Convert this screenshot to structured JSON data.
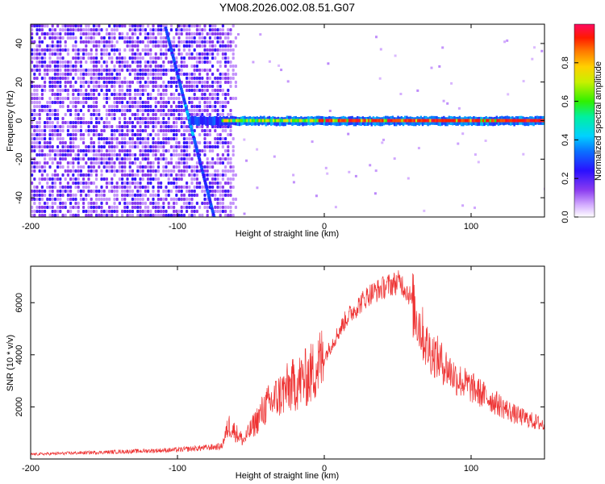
{
  "chart_data": [
    {
      "type": "heatmap",
      "title": "YM08.2026.002.08.51.G07",
      "xlabel": "Height of straight line (km)",
      "ylabel": "Frequency (Hz)",
      "xlim": [
        -200,
        150
      ],
      "ylim": [
        -50,
        50
      ],
      "xticks": [
        -200,
        -100,
        0,
        100
      ],
      "xtick_labels": [
        "-200",
        "-100",
        "0",
        "100"
      ],
      "yticks": [
        -40,
        -20,
        0,
        20,
        40
      ],
      "ytick_labels": [
        "-40",
        "-20",
        "0",
        "20",
        "40"
      ],
      "colorbar": {
        "label": "Normalized spectral amplitude",
        "range": [
          0,
          1
        ],
        "ticks": [
          0.0,
          0.2,
          0.4,
          0.6,
          0.8
        ],
        "tick_labels": [
          "0.0",
          "0.2",
          "0.4",
          "0.6",
          "0.8"
        ]
      },
      "features": {
        "noise_region_x": [
          -200,
          -62
        ],
        "steady_line": {
          "freq": 0,
          "x_start": -92,
          "x_end": 150
        },
        "diagonal_trace": {
          "x_top": -108,
          "freq_top": 48,
          "x_bottom": -75,
          "freq_bottom": -50
        }
      }
    },
    {
      "type": "line",
      "xlabel": "Height of straight line (km)",
      "ylabel": "SNR (10 * v/v)",
      "xlim": [
        -200,
        150
      ],
      "ylim": [
        0,
        7400
      ],
      "xticks": [
        -200,
        -100,
        0,
        100
      ],
      "xtick_labels": [
        "-200",
        "-100",
        "0",
        "100"
      ],
      "yticks": [
        2000,
        4000,
        6000
      ],
      "ytick_labels": [
        "2000",
        "4000",
        "6000"
      ],
      "color": "#ee3333",
      "x": [
        -200,
        -150,
        -100,
        -70,
        -65,
        -55,
        -40,
        -25,
        -10,
        0,
        15,
        30,
        45,
        52,
        58,
        70,
        90,
        110,
        130,
        150
      ],
      "y": [
        180,
        260,
        350,
        480,
        1300,
        700,
        2000,
        2700,
        3200,
        3900,
        5400,
        6300,
        6700,
        6800,
        6300,
        4300,
        3100,
        2400,
        1700,
        1300
      ]
    }
  ]
}
